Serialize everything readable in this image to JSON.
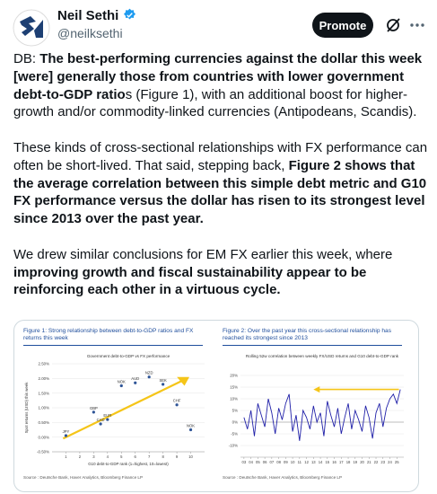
{
  "header": {
    "name": "Neil Sethi",
    "handle": "@neilksethi",
    "button": "Promote"
  },
  "paragraphs": [
    [
      {
        "text": "DB: ",
        "bold": false
      },
      {
        "text": "The best-performing currencies against the dollar this week [were] generally those from countries with lower government debt-to-GDP ratio",
        "bold": true
      },
      {
        "text": "s (Figure 1), with an additional boost for higher-growth and/or commodity-linked currencies (Antipodeans, Scandis).",
        "bold": false
      }
    ],
    [
      {
        "text": "These kinds of cross-sectional relationships with FX performance can often be short-lived. That said, stepping back, ",
        "bold": false
      },
      {
        "text": "Figure 2 shows that the average correlation between this simple debt metric and G10 FX performance versus the dollar has risen to its strongest level since 2013 over the past year.",
        "bold": true
      }
    ],
    [
      {
        "text": "We drew similar conclusions for EM FX earlier this week, where ",
        "bold": false
      },
      {
        "text": "improving growth and fiscal sustainability appear to be reinforcing each other in a virtuous cycle.",
        "bold": true
      }
    ]
  ],
  "chart_data": [
    {
      "type": "scatter",
      "title": "Figure 1: Strong relationship between debt-to-GDP ratios and FX returns this week",
      "subtitle": "Government debt-to-GDP vs FX performance",
      "x_label": "G10 debt-to-GDP rank (1=highest, 10=lowest)",
      "y_label": "Spot returns (USD) this week",
      "labels": [
        "JPY",
        "GBP",
        "CAD",
        "EUR",
        "NOK",
        "AUD",
        "NZD",
        "SEK",
        "CHF",
        "NOK"
      ],
      "x": [
        1,
        3,
        3.5,
        4,
        5,
        6,
        7,
        8,
        9,
        10
      ],
      "values": [
        0.05,
        0.85,
        0.45,
        0.6,
        1.75,
        1.85,
        2.05,
        1.8,
        1.1,
        0.25
      ],
      "color": "#2f5597",
      "trend_color": "#f5c518",
      "xlim": [
        0,
        11
      ],
      "xticks": [
        1,
        2,
        3,
        4,
        5,
        6,
        7,
        8,
        9,
        10
      ],
      "ylim": [
        -0.5,
        2.5
      ],
      "yticks": [
        {
          "value": -0.5,
          "label": "-0.50%"
        },
        {
          "value": 0,
          "label": "0.00%"
        },
        {
          "value": 0.5,
          "label": "0.50%"
        },
        {
          "value": 1,
          "label": "1.00%"
        },
        {
          "value": 1.5,
          "label": "1.50%"
        },
        {
          "value": 2,
          "label": "2.00%"
        },
        {
          "value": 2.5,
          "label": "2.50%"
        }
      ],
      "grid": true,
      "source": "Source : Deutsche Bank, Haver Analytics, Bloomberg Finance LP"
    },
    {
      "type": "line",
      "title": "Figure 2: Over the past year this cross-sectional relationship has reached its strongest since 2013",
      "subtitle": "Rolling 52w correlation between weekly FX/USD returns and G10 debt-to-GDP rank",
      "x": [
        2003,
        2003.5,
        2004,
        2004.5,
        2005,
        2005.5,
        2006,
        2006.5,
        2007,
        2007.5,
        2008,
        2008.5,
        2009,
        2009.5,
        2010,
        2010.5,
        2011,
        2011.5,
        2012,
        2012.5,
        2013,
        2013.5,
        2014,
        2014.5,
        2015,
        2015.5,
        2016,
        2016.5,
        2017,
        2017.5,
        2018,
        2018.5,
        2019,
        2019.5,
        2020,
        2020.5,
        2021,
        2021.5,
        2022,
        2022.5,
        2023,
        2023.5,
        2024,
        2024.5,
        2025,
        2025.5
      ],
      "values": [
        2,
        -3,
        5,
        -6,
        8,
        3,
        -2,
        10,
        4,
        -5,
        6,
        1,
        8,
        12,
        -4,
        3,
        -8,
        5,
        2,
        -3,
        7,
        0,
        4,
        -6,
        9,
        3,
        -2,
        6,
        -5,
        2,
        8,
        -3,
        5,
        1,
        -4,
        7,
        2,
        -7,
        4,
        8,
        -2,
        6,
        10,
        12,
        8,
        14
      ],
      "color": "#1f1fa8",
      "arrow_color": "#f5c518",
      "xlim": [
        2002.5,
        2026
      ],
      "xticks": [
        {
          "value": 2003,
          "label": "03"
        },
        {
          "value": 2004,
          "label": "04"
        },
        {
          "value": 2005,
          "label": "05"
        },
        {
          "value": 2006,
          "label": "06"
        },
        {
          "value": 2007,
          "label": "07"
        },
        {
          "value": 2008,
          "label": "08"
        },
        {
          "value": 2009,
          "label": "09"
        },
        {
          "value": 2010,
          "label": "10"
        },
        {
          "value": 2011,
          "label": "11"
        },
        {
          "value": 2012,
          "label": "12"
        },
        {
          "value": 2013,
          "label": "13"
        },
        {
          "value": 2014,
          "label": "14"
        },
        {
          "value": 2015,
          "label": "15"
        },
        {
          "value": 2016,
          "label": "16"
        },
        {
          "value": 2017,
          "label": "17"
        },
        {
          "value": 2018,
          "label": "18"
        },
        {
          "value": 2019,
          "label": "19"
        },
        {
          "value": 2020,
          "label": "20"
        },
        {
          "value": 2021,
          "label": "21"
        },
        {
          "value": 2022,
          "label": "22"
        },
        {
          "value": 2023,
          "label": "23"
        },
        {
          "value": 2024,
          "label": "24"
        },
        {
          "value": 2025,
          "label": "25"
        }
      ],
      "ylim": [
        -15,
        25
      ],
      "yticks": [
        {
          "value": -10,
          "label": "-10%"
        },
        {
          "value": -5,
          "label": "-5%"
        },
        {
          "value": 0,
          "label": "0%"
        },
        {
          "value": 5,
          "label": "5%"
        },
        {
          "value": 10,
          "label": "10%"
        },
        {
          "value": 15,
          "label": "15%"
        },
        {
          "value": 20,
          "label": "20%"
        }
      ],
      "grid": true,
      "source": "Source : Deutsche Bank, Haver Analytics, Bloomberg Finance LP"
    }
  ]
}
